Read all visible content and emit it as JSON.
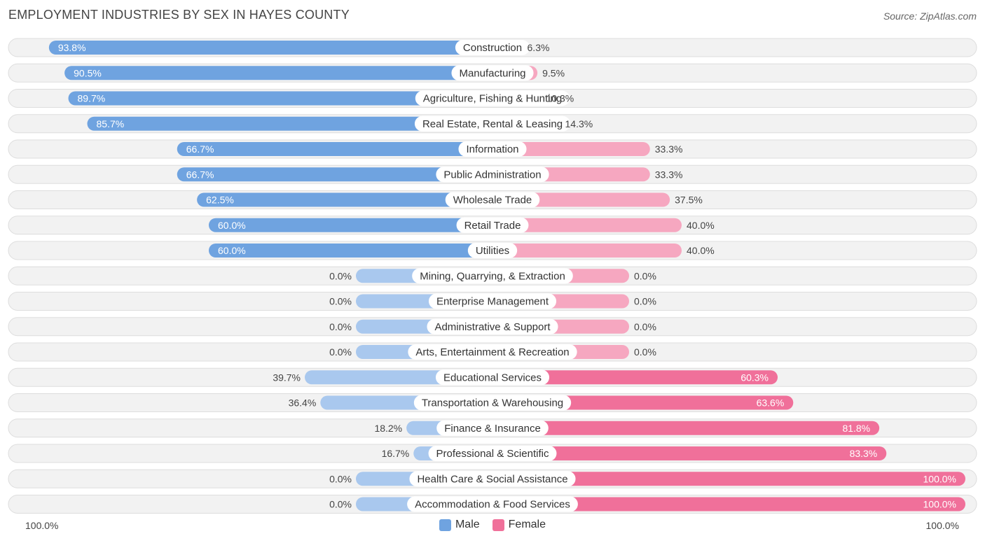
{
  "title": "EMPLOYMENT INDUSTRIES BY SEX IN HAYES COUNTY",
  "source": "Source: ZipAtlas.com",
  "colors": {
    "male": "#6fa3e0",
    "male_light": "#a9c8ee",
    "female": "#f0709a",
    "female_light": "#f6a7c0",
    "row_bg": "#f2f2f2",
    "row_border": "#dddddd"
  },
  "legend": {
    "male": "Male",
    "female": "Female"
  },
  "axis": {
    "left_label": "100.0%",
    "right_label": "100.0%"
  },
  "chart_data": {
    "type": "bar",
    "orientation": "horizontal-diverging",
    "title": "EMPLOYMENT INDUSTRIES BY SEX IN HAYES COUNTY",
    "xlim": [
      -100,
      100
    ],
    "categories": [
      "Construction",
      "Manufacturing",
      "Agriculture, Fishing & Hunting",
      "Real Estate, Rental & Leasing",
      "Information",
      "Public Administration",
      "Wholesale Trade",
      "Retail Trade",
      "Utilities",
      "Mining, Quarrying, & Extraction",
      "Enterprise Management",
      "Administrative & Support",
      "Arts, Entertainment & Recreation",
      "Educational Services",
      "Transportation & Warehousing",
      "Finance & Insurance",
      "Professional & Scientific",
      "Health Care & Social Assistance",
      "Accommodation & Food Services"
    ],
    "series": [
      {
        "name": "Male",
        "values": [
          93.8,
          90.5,
          89.7,
          85.7,
          66.7,
          66.7,
          62.5,
          60.0,
          60.0,
          0.0,
          0.0,
          0.0,
          0.0,
          39.7,
          36.4,
          18.2,
          16.7,
          0.0,
          0.0
        ],
        "labels": [
          "93.8%",
          "90.5%",
          "89.7%",
          "85.7%",
          "66.7%",
          "66.7%",
          "62.5%",
          "60.0%",
          "60.0%",
          "0.0%",
          "0.0%",
          "0.0%",
          "0.0%",
          "39.7%",
          "36.4%",
          "18.2%",
          "16.7%",
          "0.0%",
          "0.0%"
        ]
      },
      {
        "name": "Female",
        "values": [
          6.3,
          9.5,
          10.3,
          14.3,
          33.3,
          33.3,
          37.5,
          40.0,
          40.0,
          0.0,
          0.0,
          0.0,
          0.0,
          60.3,
          63.6,
          81.8,
          83.3,
          100.0,
          100.0
        ],
        "labels": [
          "6.3%",
          "9.5%",
          "10.3%",
          "14.3%",
          "33.3%",
          "33.3%",
          "37.5%",
          "40.0%",
          "40.0%",
          "0.0%",
          "0.0%",
          "0.0%",
          "0.0%",
          "60.3%",
          "63.6%",
          "81.8%",
          "83.3%",
          "100.0%",
          "100.0%"
        ]
      }
    ],
    "legend": [
      "Male",
      "Female"
    ],
    "legend_position": "bottom-center"
  }
}
